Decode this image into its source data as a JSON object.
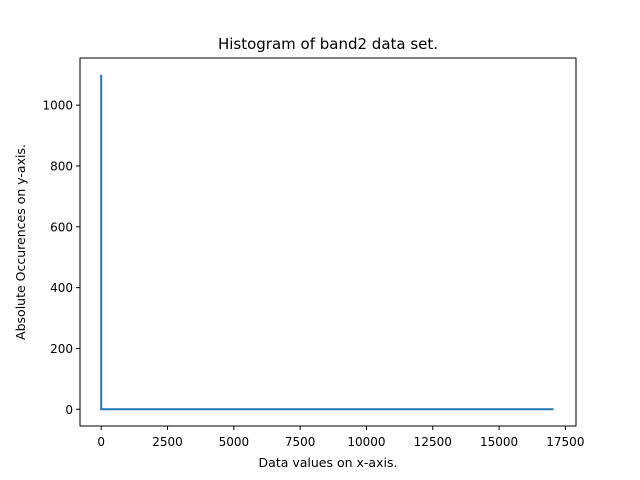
{
  "chart_data": {
    "type": "line",
    "title": "Histogram of band2 data set.",
    "xlabel": "Data values on x-axis.",
    "ylabel": "Absolute Occurences on y-axis.",
    "xlim": [
      -800,
      17900
    ],
    "ylim": [
      -55,
      1155
    ],
    "xticks": [
      0,
      2500,
      5000,
      7500,
      10000,
      12500,
      15000,
      17500
    ],
    "xtick_labels": [
      "0",
      "2500",
      "5000",
      "7500",
      "10000",
      "12500",
      "15000",
      "17500"
    ],
    "yticks": [
      0,
      200,
      400,
      600,
      800,
      1000
    ],
    "ytick_labels": [
      "0",
      "200",
      "400",
      "600",
      "800",
      "1000"
    ],
    "grid": false,
    "series": [
      {
        "color": "#1f77b4",
        "x": [
          0,
          0,
          0,
          0,
          0,
          17050
        ],
        "y": [
          0,
          1100,
          0,
          120,
          0,
          0
        ]
      }
    ]
  }
}
